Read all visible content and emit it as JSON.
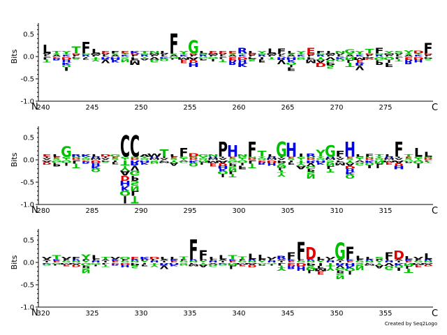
{
  "credit": "Created by Seq2Logo",
  "colors": {
    "hydrophobic": "#000000",
    "polar": "#00c000",
    "basic": "#0000e0",
    "acidic": "#e00000",
    "other": "#a000a0"
  },
  "chart_data": {
    "type": "sequence-logo",
    "ylabel": "Bits",
    "ylim": [
      -1.0,
      0.75
    ],
    "yticks": [
      "0.5",
      "0.0",
      "-0.5",
      "-1.0"
    ],
    "terminal_left": "N",
    "terminal_right": "C",
    "rows": [
      {
        "start": 240,
        "end": 279,
        "tick_labels": [
          "240",
          "245",
          "250",
          "255",
          "260",
          "265",
          "270",
          "275"
        ],
        "top": [
          "L",
          "T",
          "Y",
          "T",
          "F",
          "L",
          "E",
          "F",
          "E",
          "K",
          "T",
          "N",
          "L",
          "F",
          "Y",
          "G",
          "L",
          "E",
          "E",
          "E",
          "R",
          "L",
          "Y",
          "L",
          "F",
          "L",
          "Y",
          "E",
          "F",
          "L",
          "N",
          "G",
          "Y",
          "T",
          "F",
          "Y",
          "S",
          "Y",
          "D",
          "F"
        ],
        "height": [
          0.26,
          0.1,
          0.05,
          0.22,
          0.32,
          0.17,
          0.05,
          0.09,
          0.08,
          0.1,
          0.06,
          0.08,
          0.1,
          0.52,
          0.07,
          0.36,
          0.12,
          0.08,
          0.09,
          0.1,
          0.19,
          0.09,
          0.07,
          0.18,
          0.18,
          0.04,
          0.12,
          0.19,
          0.07,
          0.04,
          0.1,
          0.16,
          0.08,
          0.17,
          0.19,
          0.08,
          0.05,
          0.14,
          0.13,
          0.3
        ],
        "neg": [
          0.1,
          0.06,
          0.3,
          0.05,
          0.04,
          0.08,
          0.12,
          0.1,
          0.09,
          0.15,
          0.06,
          0.1,
          0.07,
          0.04,
          0.12,
          0.2,
          0.06,
          0.08,
          0.09,
          0.15,
          0.2,
          0.08,
          0.1,
          0.04,
          0.14,
          0.3,
          0.05,
          0.12,
          0.2,
          0.25,
          0.08,
          0.2,
          0.27,
          0.05,
          0.15,
          0.2,
          0.08,
          0.14,
          0.1,
          0.06
        ]
      },
      {
        "start": 280,
        "end": 319,
        "tick_labels": [
          "280",
          "285",
          "290",
          "295",
          "300",
          "305",
          "310",
          "315"
        ],
        "top": [
          "E",
          "L",
          "G",
          "R",
          "K",
          "L",
          "D",
          "G",
          "C",
          "C",
          "A",
          "W",
          "T",
          "L",
          "F",
          "D",
          "G",
          "N",
          "P",
          "H",
          "N",
          "F",
          "T",
          "L",
          "G",
          "H",
          "I",
          "R",
          "Y",
          "G",
          "F",
          "H",
          "L",
          "F",
          "T",
          "L",
          "F",
          "T",
          "L",
          "L"
        ],
        "height": [
          0.12,
          0.12,
          0.3,
          0.08,
          0.04,
          0.12,
          0.12,
          0.12,
          0.55,
          0.55,
          0.03,
          0.14,
          0.23,
          0.04,
          0.26,
          0.15,
          0.12,
          0.12,
          0.4,
          0.32,
          0.12,
          0.4,
          0.2,
          0.06,
          0.4,
          0.38,
          0.14,
          0.14,
          0.22,
          0.32,
          0.2,
          0.4,
          0.04,
          0.13,
          0.08,
          0.08,
          0.4,
          0.04,
          0.26,
          0.18
        ],
        "neg": [
          0.08,
          0.12,
          0.1,
          0.15,
          0.06,
          0.25,
          0.05,
          0.07,
          0.98,
          0.98,
          0.08,
          0.06,
          0.05,
          0.1,
          0.05,
          0.12,
          0.08,
          0.12,
          0.38,
          0.38,
          0.18,
          0.15,
          0.08,
          0.1,
          0.35,
          0.08,
          0.18,
          0.4,
          0.08,
          0.26,
          0.09,
          0.4,
          0.09,
          0.16,
          0.15,
          0.08,
          0.19,
          0.05,
          0.15,
          0.05
        ]
      },
      {
        "start": 320,
        "end": 359,
        "tick_labels": [
          "320",
          "325",
          "330",
          "335",
          "340",
          "345",
          "350",
          "355"
        ],
        "top": [
          "V",
          "T",
          "V",
          "F",
          "Y",
          "L",
          "T",
          "V",
          "Q",
          "E",
          "K",
          "D",
          "L",
          "L",
          "T",
          "F",
          "F",
          "L",
          "L",
          "T",
          "T",
          "L",
          "L",
          "V",
          "R",
          "F",
          "F",
          "D",
          "L",
          "V",
          "G",
          "F",
          "L",
          "L",
          "S",
          "F",
          "D",
          "L",
          "V",
          "L"
        ],
        "height": [
          0.09,
          0.16,
          0.11,
          0.08,
          0.18,
          0.16,
          0.11,
          0.05,
          0.03,
          0.05,
          0.07,
          0.07,
          0.06,
          0.09,
          0.13,
          0.52,
          0.27,
          0.08,
          0.16,
          0.16,
          0.13,
          0.19,
          0.17,
          0.07,
          0.15,
          0.22,
          0.45,
          0.34,
          0.07,
          0.08,
          0.44,
          0.35,
          0.15,
          0.09,
          0.05,
          0.22,
          0.26,
          0.14,
          0.09,
          0.2
        ],
        "neg": [
          0.05,
          0.04,
          0.06,
          0.07,
          0.22,
          0.06,
          0.07,
          0.05,
          0.08,
          0.1,
          0.06,
          0.07,
          0.12,
          0.06,
          0.05,
          0.06,
          0.08,
          0.07,
          0.05,
          0.12,
          0.06,
          0.08,
          0.05,
          0.05,
          0.16,
          0.12,
          0.15,
          0.22,
          0.25,
          0.15,
          0.35,
          0.25,
          0.14,
          0.05,
          0.1,
          0.14,
          0.16,
          0.2,
          0.08,
          0.06
        ]
      }
    ]
  }
}
